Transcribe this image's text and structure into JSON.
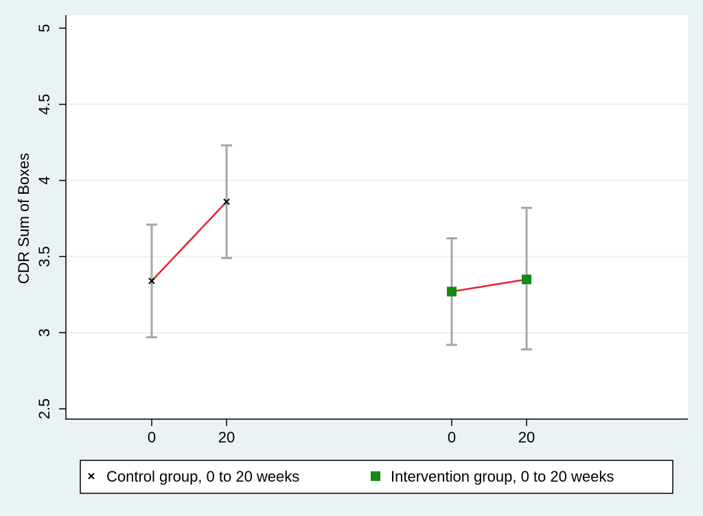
{
  "colors": {
    "page_background": "#eaf2f3",
    "plot_background": "#ffffff",
    "gridline": "#eaf2f3",
    "connector_line": "#e8202f",
    "error_bar": "#a6a6a6",
    "control_marker": "#000000",
    "intervention_marker": "#138a13"
  },
  "chart_data": {
    "type": "scatter",
    "title": "",
    "xlabel": "",
    "ylabel": "CDR Sum of Boxes",
    "ylim": [
      2.5,
      5
    ],
    "yticks": [
      "2.5",
      "3",
      "3.5",
      "4",
      "4.5",
      "5"
    ],
    "grid": true,
    "legend_position": "bottom",
    "series": [
      {
        "name": "Control group, 0 to 20 weeks",
        "marker": "x",
        "points": [
          {
            "x": "0",
            "y": 3.34,
            "ci_low": 2.97,
            "ci_high": 3.71
          },
          {
            "x": "20",
            "y": 3.86,
            "ci_low": 3.49,
            "ci_high": 4.23
          }
        ]
      },
      {
        "name": "Intervention group, 0 to 20 weeks",
        "marker": "square",
        "points": [
          {
            "x": "0",
            "y": 3.27,
            "ci_low": 2.92,
            "ci_high": 3.62
          },
          {
            "x": "20",
            "y": 3.35,
            "ci_low": 2.89,
            "ci_high": 3.82
          }
        ]
      }
    ]
  }
}
